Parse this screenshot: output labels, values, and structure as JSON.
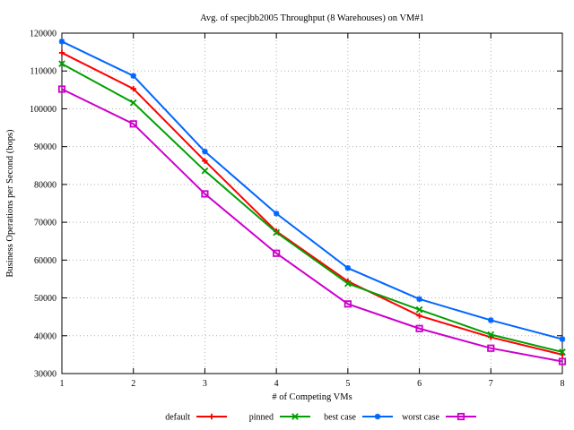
{
  "chart_data": {
    "type": "line",
    "title": "Avg. of specjbb2005 Throughput (8 Warehouses) on VM#1",
    "xlabel": "# of Competing VMs",
    "ylabel": "Business Operations per Second (bops)",
    "x": [
      1,
      2,
      3,
      4,
      5,
      6,
      7,
      8
    ],
    "xlim": [
      1,
      8
    ],
    "ylim": [
      30000,
      120000
    ],
    "ytick_step": 10000,
    "ytick_labels": [
      "30000",
      "40000",
      "50000",
      "60000",
      "70000",
      "80000",
      "90000",
      "100000",
      "110000",
      "120000"
    ],
    "xtick_labels": [
      "1",
      "2",
      "3",
      "4",
      "5",
      "6",
      "7",
      "8"
    ],
    "grid": true,
    "legend_position": "bottom-center",
    "series": [
      {
        "name": "default",
        "color": "#ff0000",
        "marker": "plus",
        "values": [
          114800,
          105300,
          86200,
          67600,
          54400,
          45300,
          39600,
          35000
        ]
      },
      {
        "name": "pinned",
        "color": "#00a000",
        "marker": "x",
        "values": [
          111900,
          101600,
          83600,
          67300,
          53800,
          46900,
          40300,
          35700
        ]
      },
      {
        "name": "best case",
        "color": "#0066ff",
        "marker": "asterisk",
        "values": [
          117800,
          108700,
          88700,
          72300,
          57900,
          49700,
          44100,
          39100
        ]
      },
      {
        "name": "worst case",
        "color": "#cc00cc",
        "marker": "square-open",
        "values": [
          105200,
          96000,
          77500,
          61800,
          48400,
          41900,
          36700,
          33200
        ]
      }
    ],
    "colors": {
      "background": "#ffffff",
      "axis": "#000000",
      "grid": "#b0b0b0",
      "text": "#000000"
    }
  }
}
